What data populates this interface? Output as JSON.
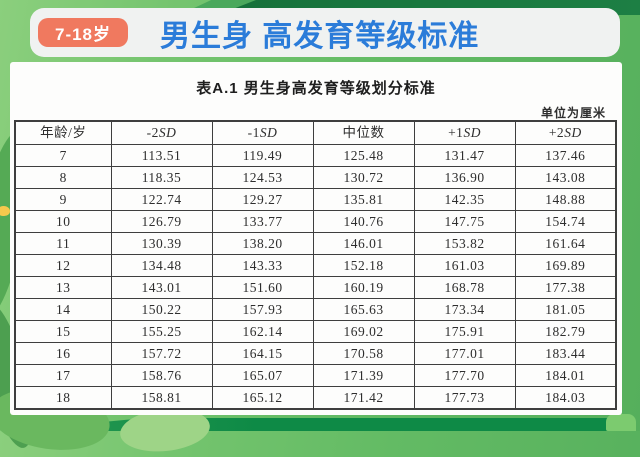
{
  "header": {
    "badge_label": "7-18岁",
    "title": "男生身 高发育等级标准"
  },
  "panel": {
    "caption": "表A.1 男生身高发育等级划分标准",
    "unit_note": "单位为厘米"
  },
  "table": {
    "columns": [
      {
        "text": "年龄/岁",
        "italic": ""
      },
      {
        "text": "-2",
        "italic": "SD"
      },
      {
        "text": "-1",
        "italic": "SD"
      },
      {
        "text": "中位数",
        "italic": ""
      },
      {
        "text": "+1",
        "italic": "SD"
      },
      {
        "text": "+2",
        "italic": "SD"
      }
    ],
    "rows": [
      [
        "7",
        "113.51",
        "119.49",
        "125.48",
        "131.47",
        "137.46"
      ],
      [
        "8",
        "118.35",
        "124.53",
        "130.72",
        "136.90",
        "143.08"
      ],
      [
        "9",
        "122.74",
        "129.27",
        "135.81",
        "142.35",
        "148.88"
      ],
      [
        "10",
        "126.79",
        "133.77",
        "140.76",
        "147.75",
        "154.74"
      ],
      [
        "11",
        "130.39",
        "138.20",
        "146.01",
        "153.82",
        "161.64"
      ],
      [
        "12",
        "134.48",
        "143.33",
        "152.18",
        "161.03",
        "169.89"
      ],
      [
        "13",
        "143.01",
        "151.60",
        "160.19",
        "168.78",
        "177.38"
      ],
      [
        "14",
        "150.22",
        "157.93",
        "165.63",
        "173.34",
        "181.05"
      ],
      [
        "15",
        "155.25",
        "162.14",
        "169.02",
        "175.91",
        "182.79"
      ],
      [
        "16",
        "157.72",
        "164.15",
        "170.58",
        "177.01",
        "183.44"
      ],
      [
        "17",
        "158.76",
        "165.07",
        "171.39",
        "177.70",
        "184.01"
      ],
      [
        "18",
        "158.81",
        "165.12",
        "171.42",
        "177.73",
        "184.03"
      ]
    ]
  },
  "colors": {
    "badge_bg": "#F0795F",
    "title_blue": "#2B7CD9",
    "header_bar_bg": "#F0F2F1",
    "background_green": "#6CC26B",
    "top_band_green": "#1D7F44",
    "bottom_band_green": "#0E8A46",
    "table_border": "#3E3E3E"
  }
}
